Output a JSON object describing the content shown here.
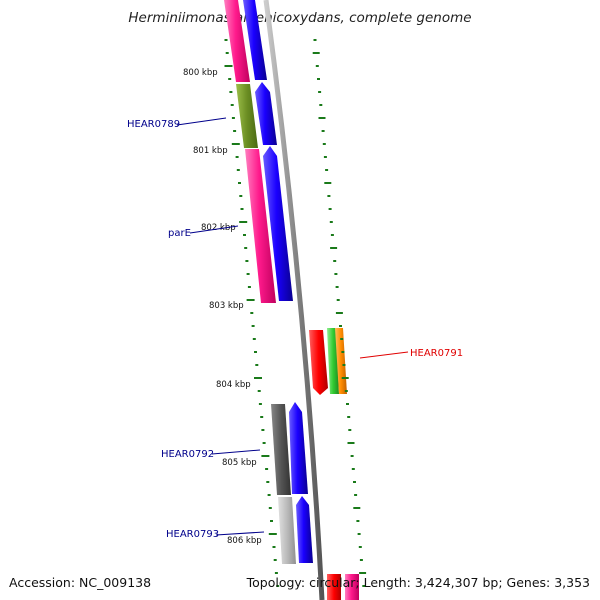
{
  "title": "Herminiimonas arsenicoxydans, complete genome",
  "footer": {
    "accession": "Accession: NC_009138",
    "topology": "Topology: circular; Length: 3,424,307 bp; Genes: 3,353"
  },
  "kbp_labels": [
    "800 kbp",
    "801 kbp",
    "802 kbp",
    "803 kbp",
    "804 kbp",
    "805 kbp",
    "806 kbp"
  ],
  "gene_labels": [
    "HEAR0789",
    "parE",
    "HEAR0791",
    "HEAR0792",
    "HEAR0793"
  ],
  "colors": {
    "forward": "#1a00ff",
    "hot_pink": "#ff1a8c",
    "olive": "#6b8e23",
    "red": "#ff0000",
    "green": "#33cc33",
    "orange": "#ff8c00",
    "dark_gray": "#555555",
    "light_gray": "#bbbbbb",
    "backbone": "#888888",
    "gc_skew": "#1a7a1a",
    "label_blue": "#00008b",
    "label_red": "#e00000"
  }
}
